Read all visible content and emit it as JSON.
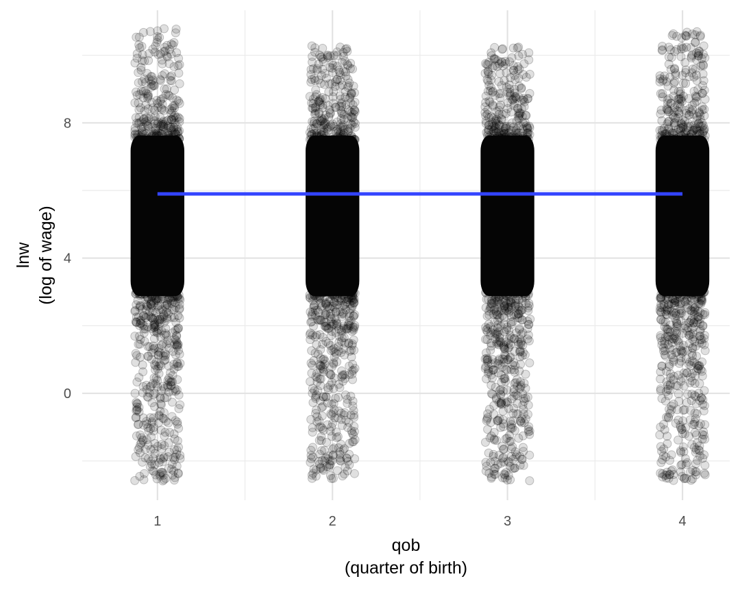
{
  "chart_data": {
    "type": "scatter",
    "title": "",
    "xlabel_lines": [
      "qob",
      "(quarter of birth)"
    ],
    "ylabel_lines": [
      "lnw",
      "(log of wage)"
    ],
    "x_ticks": [
      1,
      2,
      3,
      4
    ],
    "x_tick_labels": [
      "1",
      "2",
      "3",
      "4"
    ],
    "y_ticks": [
      0,
      4,
      8
    ],
    "y_tick_labels": [
      "0",
      "4",
      "8"
    ],
    "xlim": [
      0.57,
      4.27
    ],
    "ylim": [
      -3.16,
      11.33
    ],
    "grid": true,
    "legend": "none",
    "jitter_width": 0.13,
    "groups": [
      {
        "x": 1,
        "dense_range": [
          3.0,
          7.5
        ],
        "y_min": -2.6,
        "y_max": 10.8
      },
      {
        "x": 2,
        "dense_range": [
          3.0,
          7.5
        ],
        "y_min": -2.6,
        "y_max": 10.3
      },
      {
        "x": 3,
        "dense_range": [
          3.0,
          7.5
        ],
        "y_min": -2.6,
        "y_max": 10.3
      },
      {
        "x": 4,
        "dense_range": [
          3.0,
          7.5
        ],
        "y_min": -2.6,
        "y_max": 10.7
      }
    ],
    "series": [
      {
        "type": "scatter",
        "color": "#000000",
        "opacity": 0.1
      },
      {
        "type": "line",
        "x": [
          1,
          4
        ],
        "y": [
          5.9,
          5.9
        ],
        "color": "#3344FF"
      }
    ]
  }
}
